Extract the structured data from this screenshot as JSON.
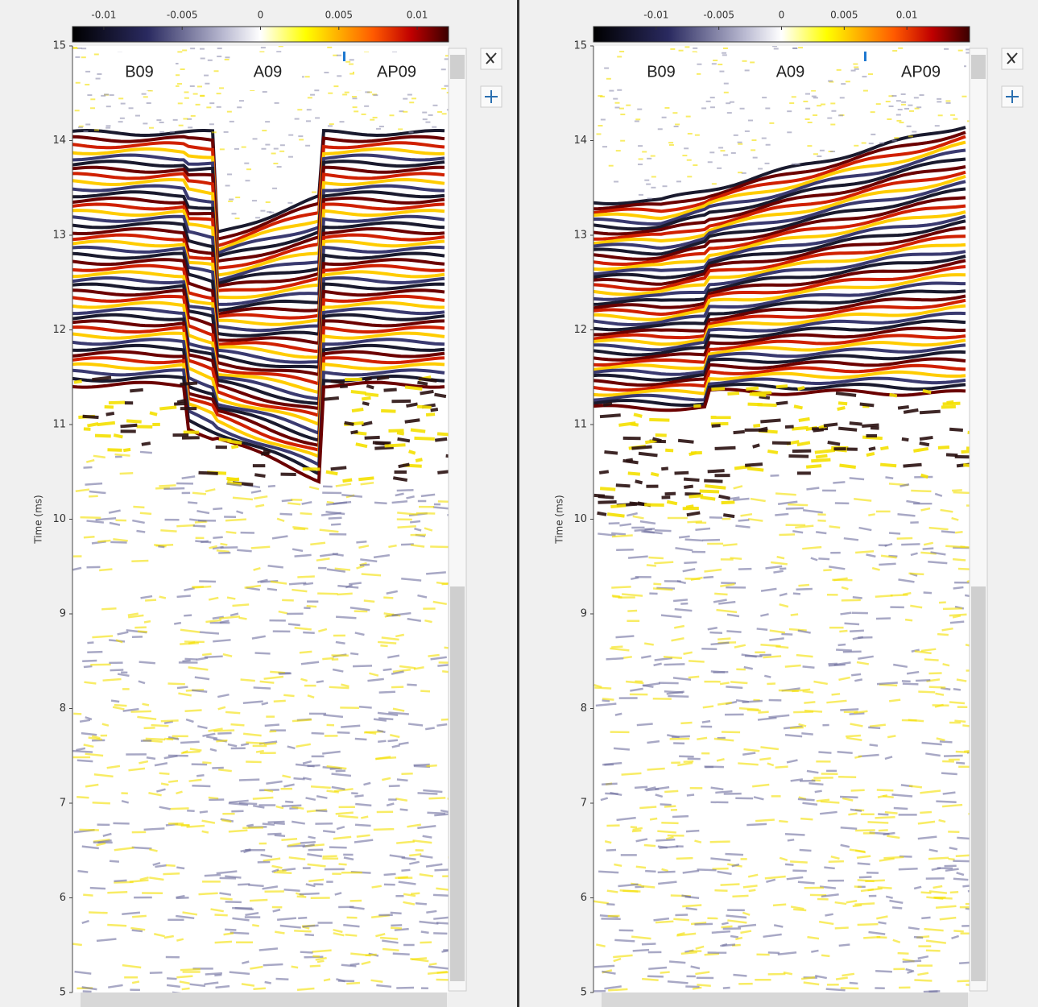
{
  "panels": [
    {
      "colorbar": {
        "clim": [
          -0.012,
          0.012
        ],
        "ticks": [
          -0.01,
          -0.005,
          0,
          0.005,
          0.01
        ]
      },
      "axis": {
        "ylabel": "Time (ms)",
        "ylim": [
          5,
          15
        ],
        "yticks": [
          5,
          6,
          7,
          8,
          9,
          10,
          11,
          12,
          13,
          14,
          15
        ]
      },
      "labels": [
        "B09",
        "A09",
        "AP09"
      ]
    },
    {
      "colorbar": {
        "clim": [
          -0.015,
          0.015
        ],
        "ticks": [
          -0.01,
          -0.005,
          0,
          0.005,
          0.01
        ]
      },
      "axis": {
        "ylabel": "Time (ms)",
        "ylim": [
          5,
          15
        ],
        "yticks": [
          5,
          6,
          7,
          8,
          9,
          10,
          11,
          12,
          13,
          14,
          15
        ]
      },
      "labels": [
        "B09",
        "A09",
        "AP09"
      ]
    }
  ]
}
